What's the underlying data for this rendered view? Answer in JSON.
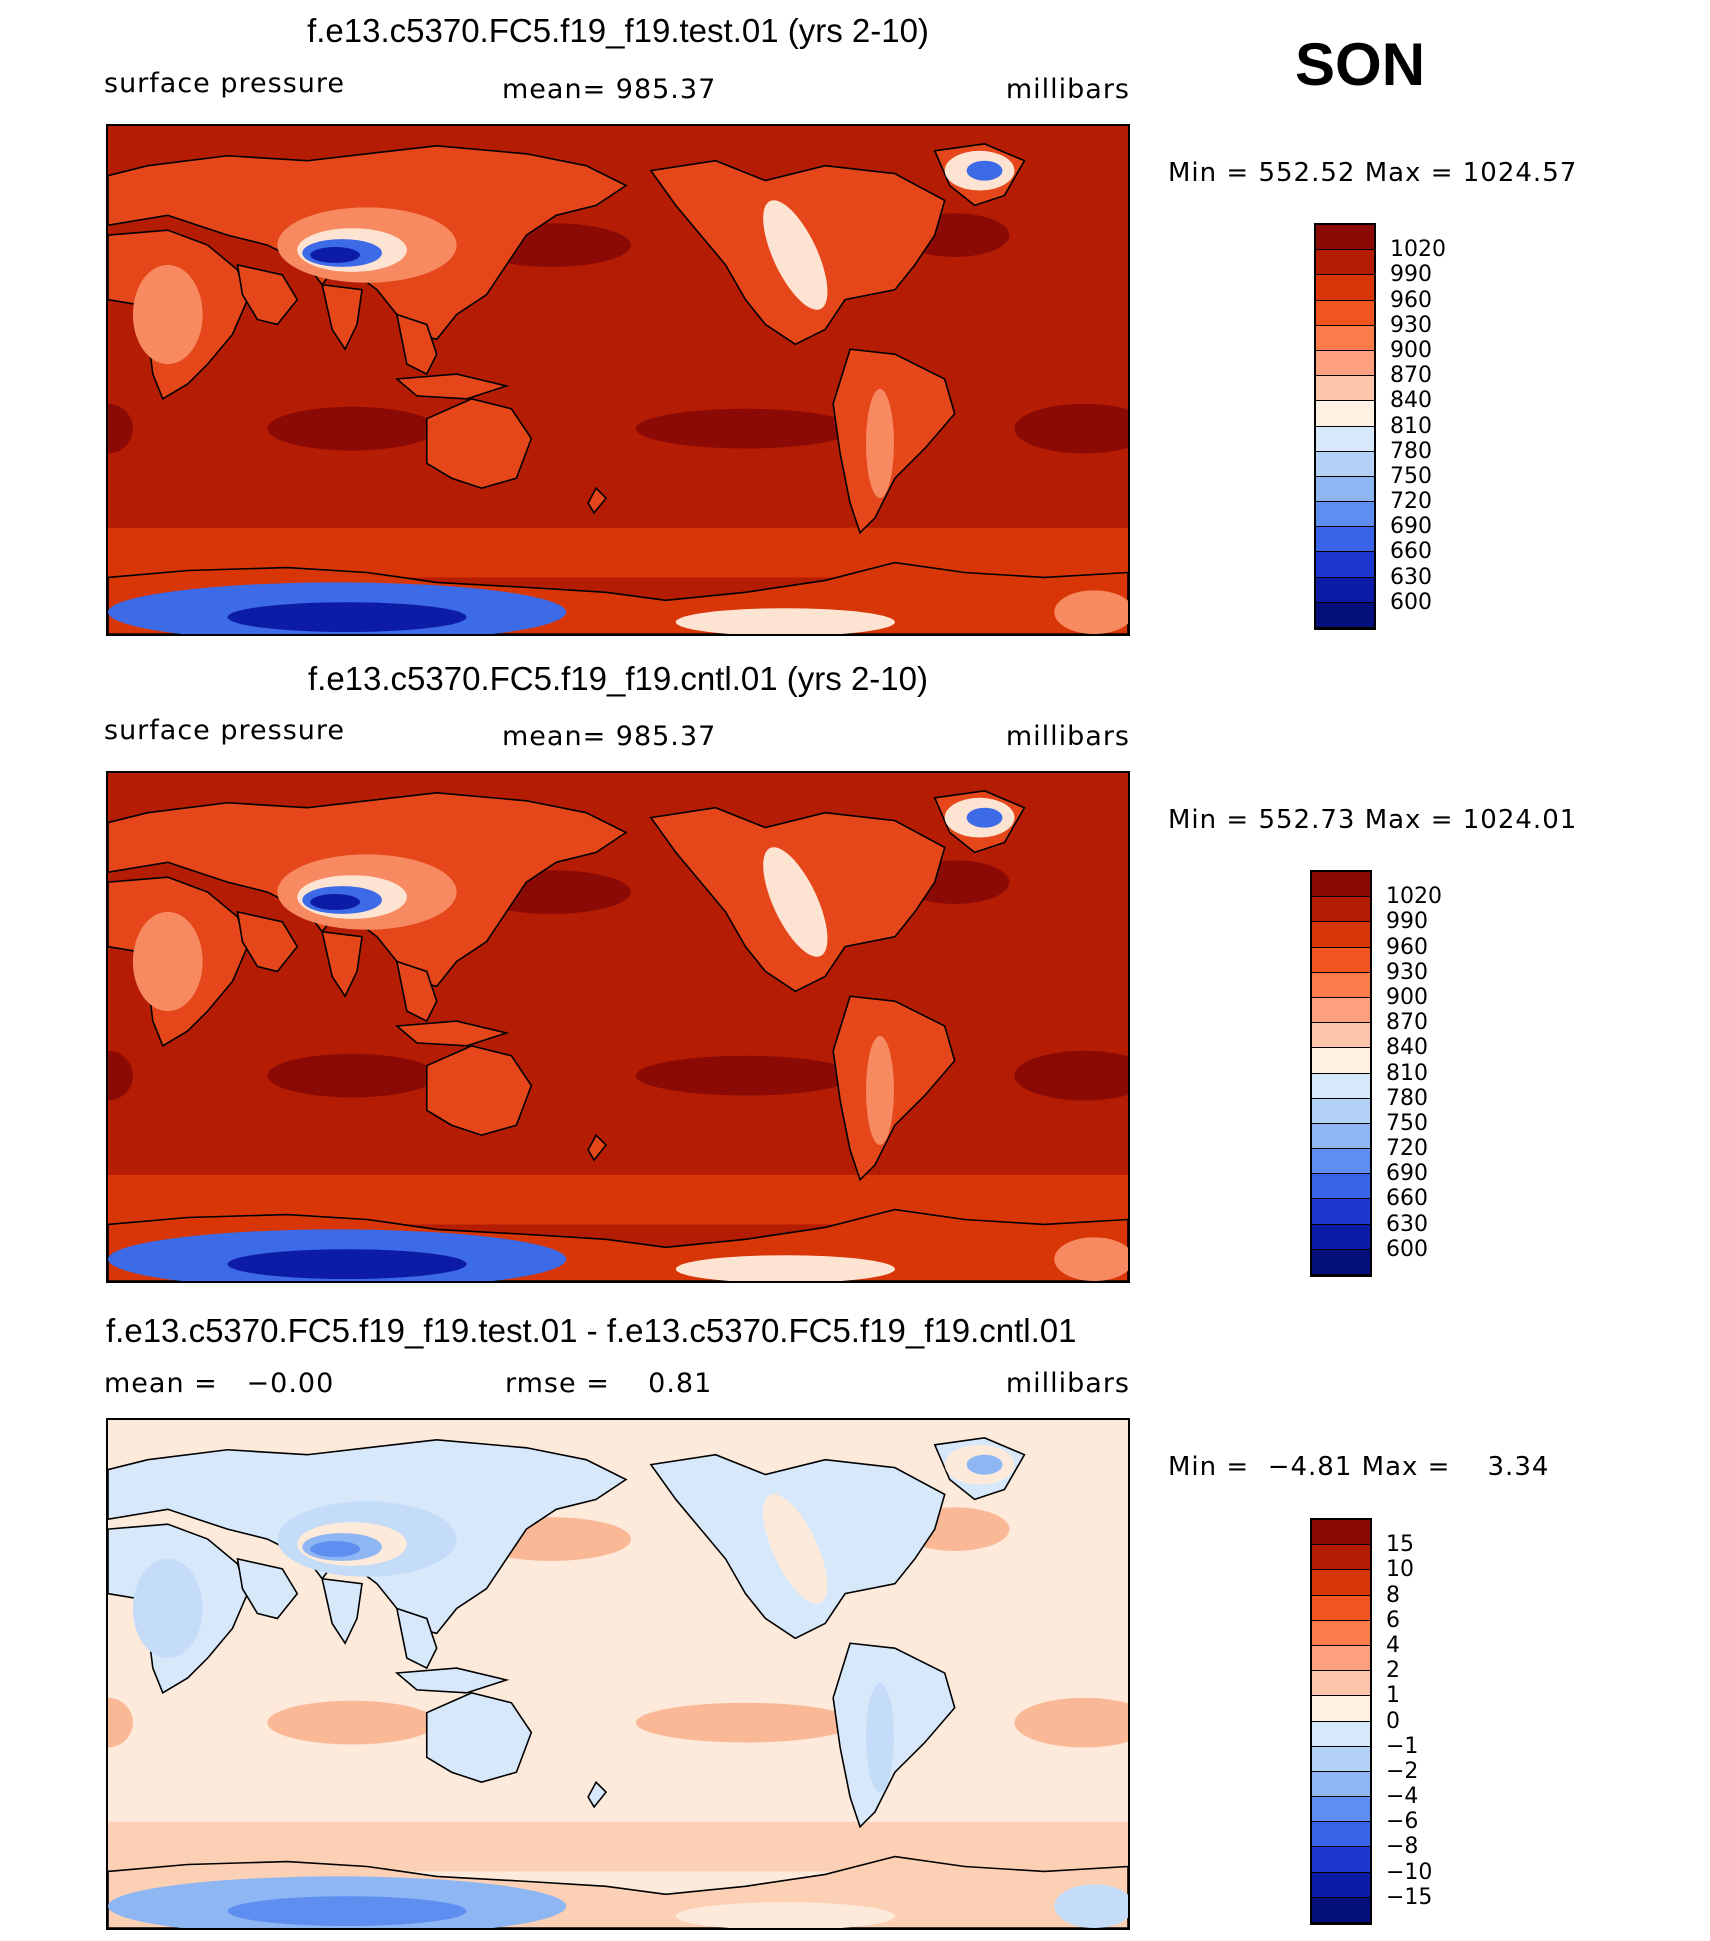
{
  "season": "SON",
  "panels": [
    {
      "title": "f.e13.c5370.FC5.f19_f19.test.01 (yrs 2-10)",
      "left_label": "surface pressure",
      "center_label": "mean= 985.37",
      "right_label": "millibars",
      "minmax": "Min = 552.52 Max = 1024.57",
      "colorbar": {
        "labels": [
          "1020",
          "990",
          "960",
          "930",
          "900",
          "870",
          "840",
          "810",
          "780",
          "750",
          "720",
          "690",
          "660",
          "630",
          "600"
        ],
        "colors": [
          "#8b0a05",
          "#b51c04",
          "#d83606",
          "#f0541f",
          "#fb7b4a",
          "#fca07f",
          "#fdc6ab",
          "#fef0e2",
          "#d8e8fb",
          "#b4d1f7",
          "#8db6f3",
          "#5e8ef0",
          "#3a64e8",
          "#1b37cf",
          "#0c1ca6",
          "#050f7c"
        ]
      },
      "map_palette": {
        "ocean": "#b51c04",
        "high": "#8b0a05",
        "band": "#d83606",
        "land": "#e5461a",
        "plateau": "#f88a62",
        "mountain": "#fde3d2",
        "low": "#3d6ae6",
        "deep": "#0c1ca6"
      }
    },
    {
      "title": "f.e13.c5370.FC5.f19_f19.cntl.01 (yrs 2-10)",
      "left_label": "surface pressure",
      "center_label": "mean= 985.37",
      "right_label": "millibars",
      "minmax": "Min = 552.73 Max = 1024.01",
      "colorbar": {
        "labels": [
          "1020",
          "990",
          "960",
          "930",
          "900",
          "870",
          "840",
          "810",
          "780",
          "750",
          "720",
          "690",
          "660",
          "630",
          "600"
        ],
        "colors": [
          "#8b0a05",
          "#b51c04",
          "#d83606",
          "#f0541f",
          "#fb7b4a",
          "#fca07f",
          "#fdc6ab",
          "#fef0e2",
          "#d8e8fb",
          "#b4d1f7",
          "#8db6f3",
          "#5e8ef0",
          "#3a64e8",
          "#1b37cf",
          "#0c1ca6",
          "#050f7c"
        ]
      },
      "map_palette": {
        "ocean": "#b51c04",
        "high": "#8b0a05",
        "band": "#d83606",
        "land": "#e5461a",
        "plateau": "#f88a62",
        "mountain": "#fde3d2",
        "low": "#3d6ae6",
        "deep": "#0c1ca6"
      }
    },
    {
      "title": "f.e13.c5370.FC5.f19_f19.test.01 - f.e13.c5370.FC5.f19_f19.cntl.01",
      "left_label": "mean =   −0.00",
      "center_label": "rmse =    0.81",
      "right_label": "millibars",
      "minmax": "Min =  −4.81 Max =    3.34",
      "colorbar": {
        "labels": [
          "15",
          "10",
          "8",
          "6",
          "4",
          "2",
          "1",
          "0",
          "−1",
          "−2",
          "−4",
          "−6",
          "−8",
          "−10",
          "−15"
        ],
        "colors": [
          "#8b0a05",
          "#b51c04",
          "#d83606",
          "#f0541f",
          "#fb7b4a",
          "#fca07f",
          "#fdc6ab",
          "#fef0e2",
          "#d8e8fb",
          "#b4d1f7",
          "#8db6f3",
          "#5e8ef0",
          "#3a64e8",
          "#1b37cf",
          "#0c1ca6",
          "#050f7c"
        ]
      },
      "map_palette": {
        "ocean": "#fdeadb",
        "high": "#fbb896",
        "band": "#fcd0b5",
        "land": "#d8e8fb",
        "plateau": "#c4dcf7",
        "mountain": "#fdeadb",
        "low": "#8db6f3",
        "deep": "#5e8ef0"
      }
    }
  ]
}
